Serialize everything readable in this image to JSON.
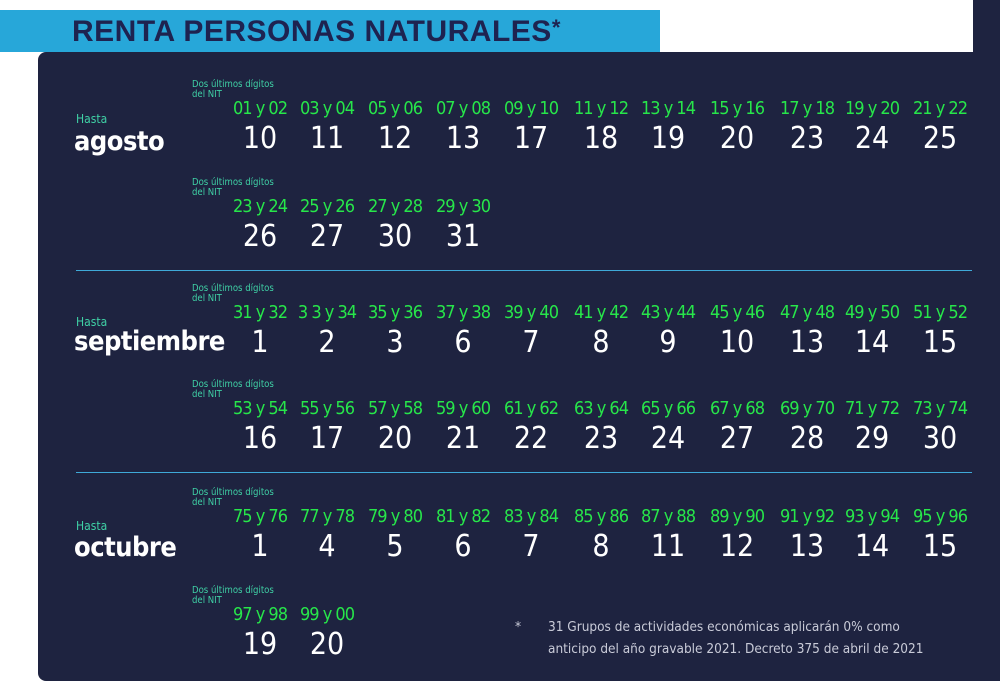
{
  "header": {
    "title": "RENTA PERSONAS NATURALES",
    "asterisk": "*"
  },
  "labels": {
    "hasta": "Hasta",
    "digits_caption_line1": "Dos últimos dígitos",
    "digits_caption_line2": "del NIT"
  },
  "sections": [
    {
      "month": "agosto",
      "rows": [
        {
          "pairs": [
            "01 y 02",
            "03 y 04",
            "05 y 06",
            "07 y 08",
            "09 y 10",
            "11 y 12",
            "13 y 14",
            "15 y 16",
            "17 y 18",
            "19 y 20",
            "21 y 22"
          ],
          "days": [
            "10",
            "11",
            "12",
            "13",
            "17",
            "18",
            "19",
            "20",
            "23",
            "24",
            "25"
          ]
        },
        {
          "pairs": [
            "23 y 24",
            "25 y 26",
            "27 y 28",
            "29 y 30"
          ],
          "days": [
            "26",
            "27",
            "30",
            "31"
          ]
        }
      ]
    },
    {
      "month": "septiembre",
      "rows": [
        {
          "pairs": [
            "31 y 32",
            "3 3 y 34",
            "35 y 36",
            "37 y 38",
            "39 y 40",
            "41 y 42",
            "43 y 44",
            "45 y 46",
            "47 y 48",
            "49 y 50",
            "51 y 52"
          ],
          "days": [
            "1",
            "2",
            "3",
            "6",
            "7",
            "8",
            "9",
            "10",
            "13",
            "14",
            "15"
          ]
        },
        {
          "pairs": [
            "53 y 54",
            "55 y 56",
            "57 y 58",
            "59 y 60",
            "61 y 62",
            "63 y 64",
            "65 y 66",
            "67 y 68",
            "69 y 70",
            "71 y 72",
            "73 y 74"
          ],
          "days": [
            "16",
            "17",
            "20",
            "21",
            "22",
            "23",
            "24",
            "27",
            "28",
            "29",
            "30"
          ]
        }
      ]
    },
    {
      "month": "octubre",
      "rows": [
        {
          "pairs": [
            "75 y 76",
            "77 y 78",
            "79 y 80",
            "81 y 82",
            "83 y 84",
            "85 y 86",
            "87 y 88",
            "89 y 90",
            "91 y 92",
            "93 y 94",
            "95 y 96"
          ],
          "days": [
            "1",
            "4",
            "5",
            "6",
            "7",
            "8",
            "11",
            "12",
            "13",
            "14",
            "15"
          ]
        },
        {
          "pairs": [
            "97 y 98",
            "99 y 00"
          ],
          "days": [
            "19",
            "20"
          ]
        }
      ]
    }
  ],
  "footnote": {
    "marker": "*",
    "line1": "31 Grupos de actividades económicas aplicarán 0% como",
    "line2": "anticipo del año gravable 2021. Decreto 375 de abril de 2021"
  },
  "colors": {
    "panel": "#1e2340",
    "header_band": "#27a7d9",
    "title": "#1e2350",
    "pair_text": "#27e64a",
    "caption_text": "#3fd0a5",
    "divider": "#3fa9d8"
  }
}
